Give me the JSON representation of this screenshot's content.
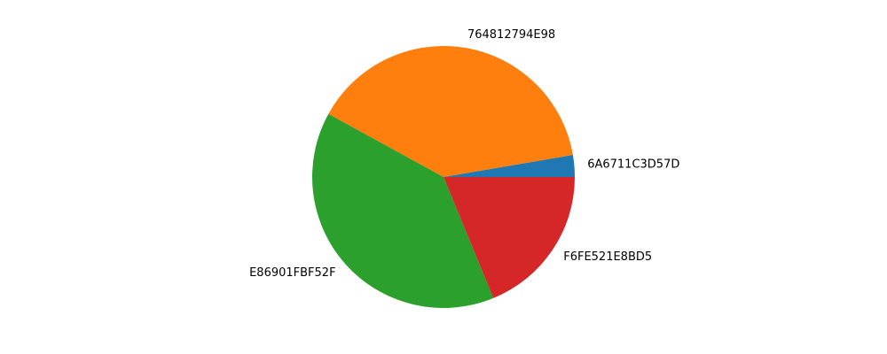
{
  "chart_data": {
    "type": "pie",
    "title": "",
    "labels": [
      "6A6711C3D57D",
      "764812794E98",
      "E86901FBF52F",
      "F6FE521E8BD5"
    ],
    "values": [
      2.7,
      39.3,
      39.2,
      18.8
    ],
    "colors": [
      "#1f77b4",
      "#ff7f0e",
      "#2ca02c",
      "#d62728"
    ],
    "start_angle": 0,
    "direction": "counterclockwise",
    "legend": "none"
  }
}
